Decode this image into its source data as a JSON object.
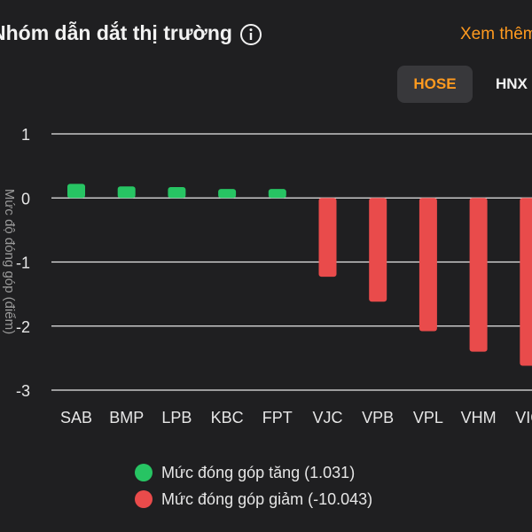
{
  "header": {
    "title": "Nhóm dẫn dắt thị trường",
    "info_icon": "info-icon",
    "see_more": "Xem thêm"
  },
  "tabs": [
    {
      "label": "HOSE",
      "active": true
    },
    {
      "label": "HNX",
      "active": false
    }
  ],
  "colors": {
    "accent": "#ff9a1f",
    "positive": "#27c463",
    "negative": "#e94b4b",
    "background": "#1f1f21"
  },
  "legend": {
    "positive_label": "Mức đóng góp tăng (1.031)",
    "negative_label": "Mức đóng góp giảm (-10.043)"
  },
  "chart_data": {
    "type": "bar",
    "ylabel": "Mức độ đóng góp (điểm)",
    "ylim": [
      -3,
      1
    ],
    "yticks": [
      1,
      0,
      -1,
      -2,
      -3
    ],
    "grid": true,
    "categories": [
      "SAB",
      "BMP",
      "LPB",
      "KBC",
      "FPT",
      "VJC",
      "VPB",
      "VPL",
      "VHM",
      "VIC"
    ],
    "values": [
      0.22,
      0.18,
      0.17,
      0.14,
      0.14,
      -1.23,
      -1.62,
      -2.08,
      -2.4,
      -2.62
    ]
  }
}
